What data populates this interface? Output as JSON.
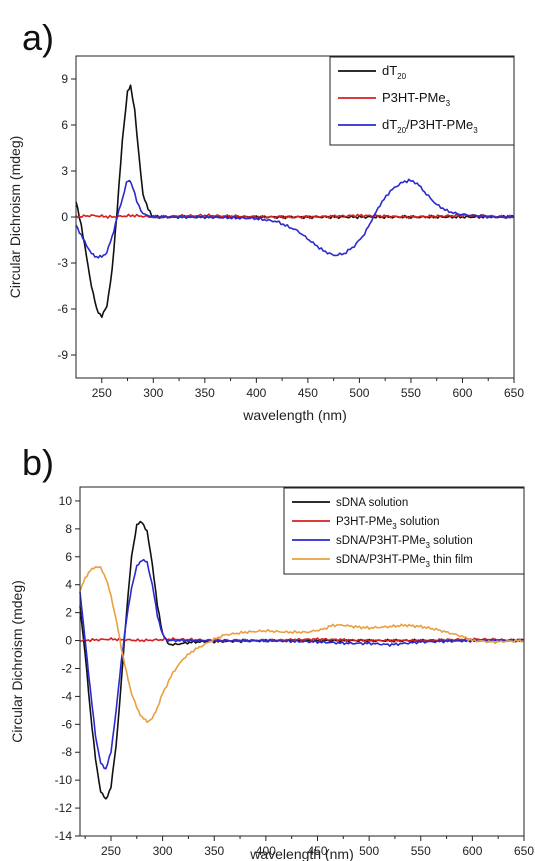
{
  "chart_data": [
    {
      "panel": "a)",
      "type": "line",
      "xlabel": "wavelength (nm)",
      "ylabel": "Circular Dichroism (mdeg)",
      "xlim": [
        225,
        650
      ],
      "ylim": [
        -10.5,
        10.5
      ],
      "xticks": [
        250,
        300,
        350,
        400,
        450,
        500,
        550,
        600,
        650
      ],
      "yticks": [
        -9,
        -6,
        -3,
        0,
        3,
        6,
        9
      ],
      "legend_position": "top-right",
      "series": [
        {
          "name": "dT20",
          "name_main": "dT",
          "name_sub": "20",
          "name_tail": "",
          "color": "#111111",
          "points": [
            [
              225,
              1.0
            ],
            [
              230,
              -0.5
            ],
            [
              235,
              -2.5
            ],
            [
              240,
              -4.5
            ],
            [
              245,
              -6.0
            ],
            [
              250,
              -6.5
            ],
            [
              255,
              -5.8
            ],
            [
              260,
              -3.5
            ],
            [
              265,
              0.5
            ],
            [
              270,
              5.0
            ],
            [
              275,
              8.2
            ],
            [
              278,
              8.5
            ],
            [
              282,
              7.0
            ],
            [
              286,
              4.0
            ],
            [
              290,
              1.5
            ],
            [
              295,
              0.5
            ],
            [
              300,
              0.0
            ],
            [
              320,
              0.0
            ],
            [
              400,
              0.0
            ],
            [
              500,
              0.0
            ],
            [
              600,
              0.0
            ],
            [
              650,
              0.0
            ]
          ]
        },
        {
          "name": "P3HT-PMe3",
          "name_main": "P3HT-PMe",
          "name_sub": "3",
          "name_tail": "",
          "color": "#d42020",
          "points": [
            [
              225,
              0.0
            ],
            [
              240,
              0.1
            ],
            [
              260,
              0.0
            ],
            [
              280,
              0.1
            ],
            [
              300,
              0.0
            ],
            [
              350,
              0.1
            ],
            [
              400,
              0.0
            ],
            [
              450,
              0.0
            ],
            [
              500,
              0.1
            ],
            [
              550,
              0.0
            ],
            [
              600,
              0.1
            ],
            [
              650,
              0.0
            ]
          ]
        },
        {
          "name": "dT20/P3HT-PMe3",
          "name_main": "dT",
          "name_sub": "20",
          "name_tail": "/P3HT-PMe",
          "name_sub2": "3",
          "color": "#2a2ad0",
          "points": [
            [
              225,
              -0.5
            ],
            [
              230,
              -1.2
            ],
            [
              235,
              -1.8
            ],
            [
              240,
              -2.4
            ],
            [
              245,
              -2.6
            ],
            [
              250,
              -2.6
            ],
            [
              255,
              -2.3
            ],
            [
              260,
              -1.3
            ],
            [
              265,
              0.0
            ],
            [
              270,
              1.2
            ],
            [
              274,
              2.2
            ],
            [
              277,
              2.4
            ],
            [
              280,
              2.0
            ],
            [
              284,
              1.0
            ],
            [
              290,
              0.2
            ],
            [
              300,
              0.0
            ],
            [
              350,
              0.0
            ],
            [
              400,
              -0.1
            ],
            [
              420,
              -0.3
            ],
            [
              440,
              -0.9
            ],
            [
              455,
              -1.7
            ],
            [
              465,
              -2.2
            ],
            [
              475,
              -2.5
            ],
            [
              485,
              -2.4
            ],
            [
              495,
              -1.9
            ],
            [
              505,
              -1.1
            ],
            [
              512,
              -0.2
            ],
            [
              520,
              0.8
            ],
            [
              530,
              1.7
            ],
            [
              540,
              2.2
            ],
            [
              548,
              2.4
            ],
            [
              556,
              2.2
            ],
            [
              565,
              1.5
            ],
            [
              575,
              0.8
            ],
            [
              585,
              0.4
            ],
            [
              595,
              0.2
            ],
            [
              610,
              0.1
            ],
            [
              630,
              0.0
            ],
            [
              650,
              0.0
            ]
          ]
        }
      ]
    },
    {
      "panel": "b)",
      "type": "line",
      "xlabel": "wavelength (nm)",
      "ylabel": "Circular Dichroism (mdeg)",
      "xlim": [
        220,
        650
      ],
      "ylim": [
        -14,
        11
      ],
      "xticks": [
        250,
        300,
        350,
        400,
        450,
        500,
        550,
        600,
        650
      ],
      "yticks": [
        -14,
        -12,
        -10,
        -8,
        -6,
        -4,
        -2,
        0,
        2,
        4,
        6,
        8,
        10
      ],
      "legend_position": "top-right",
      "series": [
        {
          "name": "sDNA solution",
          "name_main": "sDNA solution",
          "name_sub": "",
          "name_tail": "",
          "color": "#111111",
          "points": [
            [
              220,
              2.5
            ],
            [
              225,
              -1.0
            ],
            [
              230,
              -5.0
            ],
            [
              235,
              -8.5
            ],
            [
              240,
              -10.8
            ],
            [
              245,
              -11.4
            ],
            [
              250,
              -10.5
            ],
            [
              255,
              -7.5
            ],
            [
              260,
              -3.0
            ],
            [
              265,
              2.0
            ],
            [
              270,
              6.0
            ],
            [
              275,
              8.3
            ],
            [
              280,
              8.5
            ],
            [
              285,
              7.8
            ],
            [
              290,
              5.5
            ],
            [
              295,
              2.5
            ],
            [
              300,
              0.5
            ],
            [
              305,
              -0.2
            ],
            [
              310,
              -0.3
            ],
            [
              330,
              -0.1
            ],
            [
              400,
              0.0
            ],
            [
              500,
              0.0
            ],
            [
              600,
              0.0
            ],
            [
              650,
              0.0
            ]
          ]
        },
        {
          "name": "P3HT-PMe3 solution",
          "name_main": "P3HT-PMe",
          "name_sub": "3",
          "name_tail": " solution",
          "color": "#d42020",
          "points": [
            [
              220,
              0.0
            ],
            [
              250,
              0.1
            ],
            [
              280,
              0.0
            ],
            [
              310,
              0.1
            ],
            [
              350,
              0.0
            ],
            [
              400,
              0.0
            ],
            [
              450,
              0.1
            ],
            [
              500,
              0.0
            ],
            [
              550,
              0.0
            ],
            [
              600,
              0.1
            ],
            [
              650,
              0.0
            ]
          ]
        },
        {
          "name": "sDNA/P3HT-PMe3 solution",
          "name_main": "sDNA/P3HT-PMe",
          "name_sub": "3",
          "name_tail": " solution",
          "color": "#2a2ad0",
          "points": [
            [
              220,
              3.5
            ],
            [
              225,
              0.0
            ],
            [
              230,
              -3.5
            ],
            [
              235,
              -6.8
            ],
            [
              240,
              -8.8
            ],
            [
              245,
              -9.2
            ],
            [
              250,
              -8.0
            ],
            [
              255,
              -5.0
            ],
            [
              260,
              -1.5
            ],
            [
              265,
              1.5
            ],
            [
              270,
              3.8
            ],
            [
              275,
              5.3
            ],
            [
              280,
              5.8
            ],
            [
              285,
              5.6
            ],
            [
              290,
              4.0
            ],
            [
              295,
              1.8
            ],
            [
              300,
              0.4
            ],
            [
              305,
              0.0
            ],
            [
              350,
              0.0
            ],
            [
              400,
              0.0
            ],
            [
              450,
              -0.1
            ],
            [
              480,
              -0.2
            ],
            [
              500,
              -0.2
            ],
            [
              520,
              -0.3
            ],
            [
              550,
              -0.1
            ],
            [
              600,
              0.0
            ],
            [
              650,
              0.0
            ]
          ]
        },
        {
          "name": "sDNA/P3HT-PMe3 thin film",
          "name_main": "sDNA/P3HT-PMe",
          "name_sub": "3",
          "name_tail": " thin film",
          "color": "#e8a040",
          "points": [
            [
              220,
              3.5
            ],
            [
              225,
              4.5
            ],
            [
              230,
              5.0
            ],
            [
              235,
              5.3
            ],
            [
              240,
              5.2
            ],
            [
              245,
              4.5
            ],
            [
              250,
              3.2
            ],
            [
              255,
              1.5
            ],
            [
              260,
              -0.5
            ],
            [
              265,
              -2.3
            ],
            [
              270,
              -3.8
            ],
            [
              275,
              -4.8
            ],
            [
              280,
              -5.5
            ],
            [
              285,
              -5.8
            ],
            [
              290,
              -5.6
            ],
            [
              295,
              -4.8
            ],
            [
              300,
              -3.8
            ],
            [
              310,
              -2.3
            ],
            [
              320,
              -1.3
            ],
            [
              330,
              -0.7
            ],
            [
              340,
              -0.3
            ],
            [
              350,
              0.1
            ],
            [
              360,
              0.4
            ],
            [
              380,
              0.6
            ],
            [
              400,
              0.7
            ],
            [
              420,
              0.6
            ],
            [
              440,
              0.6
            ],
            [
              455,
              0.8
            ],
            [
              465,
              1.1
            ],
            [
              475,
              1.1
            ],
            [
              485,
              1.0
            ],
            [
              500,
              0.9
            ],
            [
              520,
              1.0
            ],
            [
              535,
              1.1
            ],
            [
              550,
              1.0
            ],
            [
              565,
              0.8
            ],
            [
              580,
              0.5
            ],
            [
              590,
              0.3
            ],
            [
              600,
              0.0
            ],
            [
              620,
              -0.1
            ],
            [
              650,
              0.0
            ]
          ]
        }
      ]
    }
  ]
}
